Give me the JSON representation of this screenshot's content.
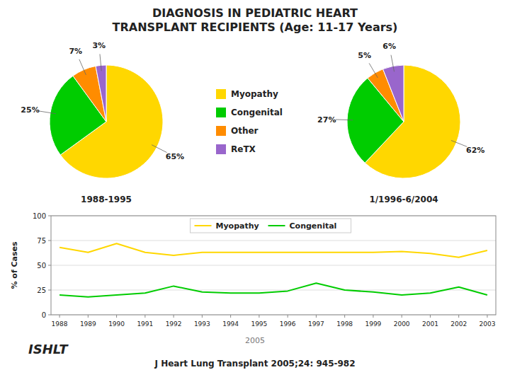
{
  "title": "DIAGNOSIS IN PEDIATRIC HEART",
  "subtitle": "TRANSPLANT RECIPIENTS (Age: 11-17 Years)",
  "annotations": [
    "ISHLT",
    "2005",
    "J Heart Lung Transplant 2005;24: 945-982"
  ],
  "chart_data": [
    {
      "type": "pie",
      "title": "1988-1995",
      "categories": [
        "Myopathy",
        "Congenital",
        "Other",
        "ReTX"
      ],
      "values": [
        65,
        25,
        7,
        3
      ],
      "value_labels": [
        "65%",
        "25%",
        "7%",
        "3%"
      ],
      "colors": [
        "#FFD700",
        "#00CC00",
        "#FF8C00",
        "#9966CC"
      ],
      "data_labels": true,
      "legend": "right"
    },
    {
      "type": "pie",
      "title": "1/1996-6/2004",
      "values": [
        62,
        27,
        5,
        6
      ],
      "value_labels": [
        "62%",
        "27%",
        "5%",
        "6%"
      ],
      "colors": [
        "#FFD700",
        "#00CC00",
        "#FF8C00",
        "#9966CC"
      ],
      "data_labels": true
    },
    {
      "type": "line",
      "x": [
        1988,
        1989,
        1990,
        1991,
        1992,
        1993,
        1994,
        1995,
        1996,
        1997,
        1998,
        1999,
        2000,
        2001,
        2002,
        2003
      ],
      "series": [
        {
          "name": "Myopathy",
          "color": "#FFD700",
          "values": [
            68,
            63,
            72,
            63,
            60,
            63,
            63,
            63,
            63,
            63,
            63,
            63,
            64,
            62,
            58,
            65
          ]
        },
        {
          "name": "Congenital",
          "color": "#00CC00",
          "values": [
            20,
            18,
            20,
            22,
            29,
            23,
            22,
            22,
            24,
            32,
            25,
            23,
            20,
            22,
            28,
            20
          ]
        }
      ],
      "ylabel": "% of Cases",
      "xlim": [
        1987.7,
        2003.3
      ],
      "xticks": [
        1988,
        1989,
        1990,
        1991,
        1992,
        1993,
        1994,
        1995,
        1996,
        1997,
        1998,
        1999,
        2000,
        2001,
        2002,
        2003
      ],
      "ylim": [
        0,
        100
      ],
      "yticks": [
        0,
        25,
        50,
        75,
        100
      ],
      "grid": true,
      "legend": "top"
    }
  ]
}
